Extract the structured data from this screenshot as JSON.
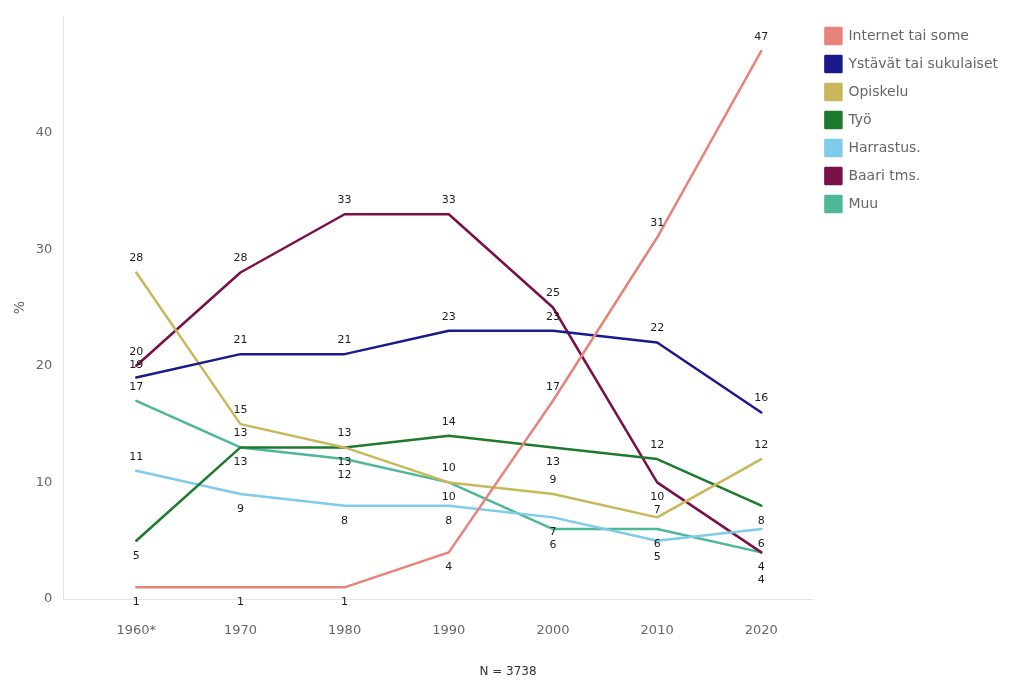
{
  "chart_data": {
    "type": "line",
    "x": [
      1960,
      1970,
      1980,
      1990,
      2000,
      2010,
      2020
    ],
    "xlim": [
      1953,
      2025
    ],
    "xticks": [
      {
        "value": 1960,
        "label": "1960*"
      },
      1970,
      1980,
      1990,
      2000,
      2010,
      2020
    ],
    "ylim": [
      0,
      50
    ],
    "yticks": [
      0,
      10,
      20,
      30,
      40
    ],
    "ylabel": "%",
    "series": [
      {
        "name": "Internet tai some",
        "color": "#e8837a",
        "values": [
          1,
          1,
          1,
          4,
          17,
          31,
          47
        ]
      },
      {
        "name": "Ystävät tai sukulaiset",
        "color": "#1a1a8c",
        "values": [
          19,
          21,
          21,
          23,
          23,
          22,
          16
        ]
      },
      {
        "name": "Opiskelu",
        "color": "#c8b85a",
        "values": [
          28,
          15,
          13,
          10,
          9,
          7,
          12
        ]
      },
      {
        "name": "Työ",
        "color": "#1e7a2e",
        "values": [
          5,
          13,
          13,
          14,
          13,
          12,
          8
        ]
      },
      {
        "name": "Harrastus.",
        "color": "#7ecbea",
        "values": [
          11,
          9,
          8,
          8,
          7,
          5,
          6
        ]
      },
      {
        "name": "Baari tms.",
        "color": "#7a1048",
        "values": [
          20,
          28,
          33,
          33,
          25,
          10,
          4
        ]
      },
      {
        "name": "Muu",
        "color": "#4db898",
        "values": [
          17,
          13,
          12,
          10,
          6,
          6,
          4
        ]
      }
    ],
    "data_labels": true,
    "legend": "right",
    "grid": false,
    "note": "N = 3738"
  }
}
